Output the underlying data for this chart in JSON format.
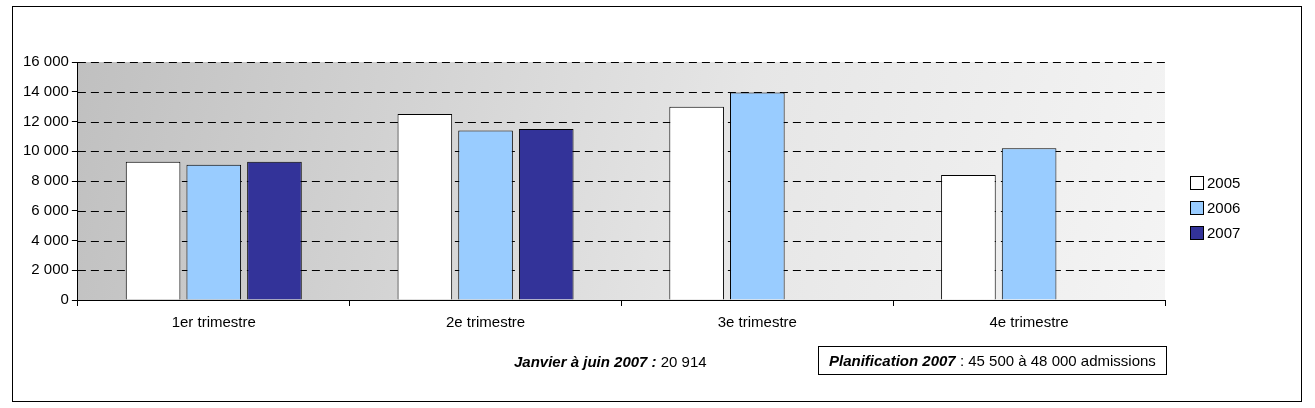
{
  "chart_data": {
    "type": "bar",
    "categories": [
      "1er trimestre",
      "2e trimestre",
      "3e trimestre",
      "4e trimestre"
    ],
    "series": [
      {
        "name": "2005",
        "color": "#ffffff",
        "values": [
          9300,
          12500,
          13000,
          8400
        ]
      },
      {
        "name": "2006",
        "color": "#99ccff",
        "values": [
          9100,
          11400,
          13950,
          10200
        ]
      },
      {
        "name": "2007",
        "color": "#333399",
        "values": [
          9300,
          11500,
          null,
          null
        ]
      }
    ],
    "ylim": [
      0,
      16000
    ],
    "yticks": [
      0,
      2000,
      4000,
      6000,
      8000,
      10000,
      12000,
      14000,
      16000
    ],
    "grid": "y",
    "legend": "right",
    "annotations": [
      "Janvier à juin 2007 :  20 914",
      "Planification 2007 : 45 500 à 48 000 admissions"
    ]
  }
}
